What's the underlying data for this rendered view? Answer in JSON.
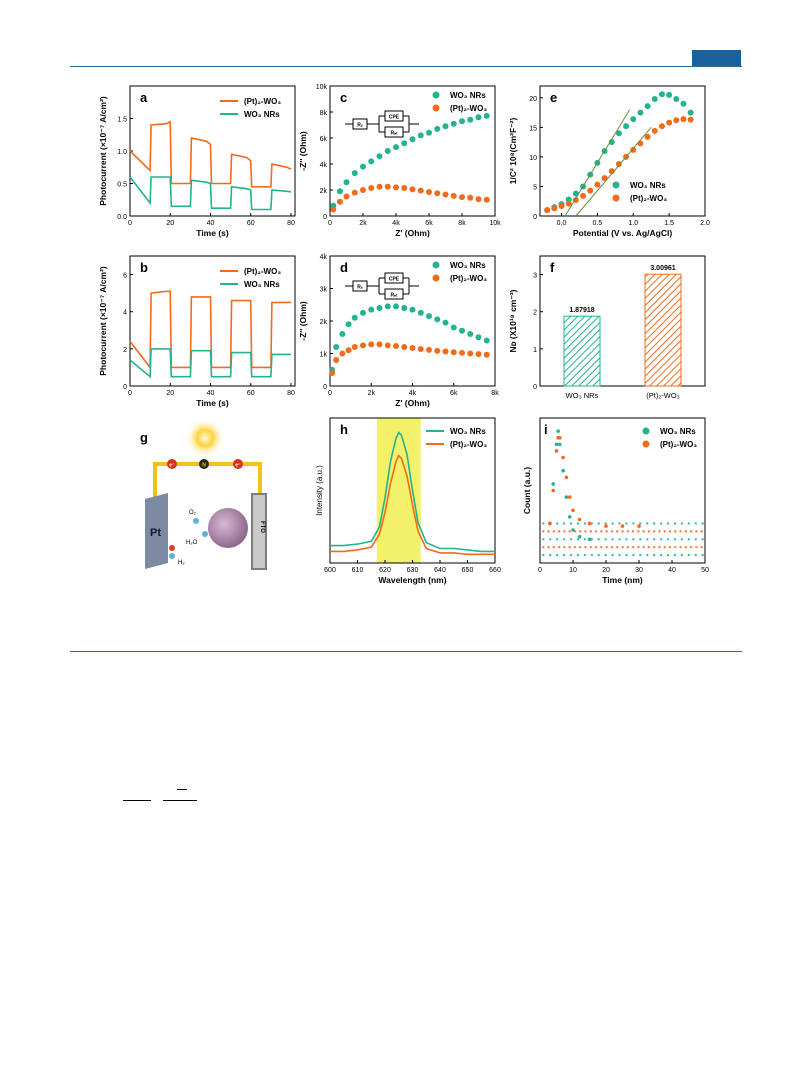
{
  "panels": {
    "a": {
      "letter": "a",
      "ylabel": "Photocurrent (×10⁻⁷ A/cm²)",
      "xlabel": "Time (s)",
      "xticks": [
        "0",
        "20",
        "40",
        "60",
        "80"
      ],
      "yticks": [
        "0.0",
        "0.5",
        "1.0",
        "1.5"
      ],
      "legend": [
        "(Pt)₂-WO₃",
        "WO₃ NRs"
      ]
    },
    "b": {
      "letter": "b",
      "ylabel": "Photocurrent (×10⁻⁷ A/cm²)",
      "xlabel": "Time (s)",
      "xticks": [
        "0",
        "20",
        "40",
        "60",
        "80"
      ],
      "yticks": [
        "0",
        "2",
        "4",
        "6"
      ],
      "legend": [
        "(Pt)₂-WO₃",
        "WO₃ NRs"
      ]
    },
    "c": {
      "letter": "c",
      "ylabel": "-Z'' (Ohm)",
      "xlabel": "Z' (Ohm)",
      "xticks": [
        "0",
        "2k",
        "4k",
        "6k",
        "8k",
        "10k"
      ],
      "yticks": [
        "0",
        "2k",
        "4k",
        "6k",
        "8k",
        "10k"
      ],
      "legend": [
        "WO₃ NRs",
        "(Pt)₂-WO₃"
      ],
      "circuit": [
        "Rₛ",
        "CPE",
        "Rₕₜ"
      ]
    },
    "d": {
      "letter": "d",
      "ylabel": "-Z'' (Ohm)",
      "xlabel": "Z' (Ohm)",
      "xticks": [
        "0",
        "2k",
        "4k",
        "6k",
        "8k"
      ],
      "yticks": [
        "0",
        "1k",
        "2k",
        "3k",
        "4k"
      ],
      "legend": [
        "WO₃ NRs",
        "(Pt)₂-WO₃"
      ],
      "circuit": [
        "Rₛ",
        "CPE",
        "Rₕₜ"
      ]
    },
    "e": {
      "letter": "e",
      "ylabel": "1/C² 10⁸(Cm²F⁻²)",
      "xlabel": "Potential (V vs. Ag/AgCl)",
      "xticks": [
        "0.0",
        "0.5",
        "1.0",
        "1.5",
        "2.0"
      ],
      "yticks": [
        "0",
        "5",
        "10",
        "15",
        "20"
      ],
      "legend": [
        "WO₃ NRs",
        "(Pt)₂-WO₃"
      ]
    },
    "f": {
      "letter": "f",
      "ylabel": "Nᴅ (X10¹⁸ cm⁻³)",
      "xticks": [
        "WO₃ NRs",
        "(Pt)₂-WO₃"
      ],
      "yticks": [
        "0",
        "1",
        "2",
        "3"
      ],
      "labels": [
        "1.87918",
        "3.00961"
      ]
    },
    "g": {
      "letter": "g",
      "pt": "Pt",
      "fto": "FTO",
      "o2": "O₂",
      "h2o": "H₂O",
      "h2": "H₂",
      "electron": "e⁻",
      "n": "N"
    },
    "h": {
      "letter": "h",
      "ylabel": "Intensity (a.u.)",
      "xlabel": "Wavelength (nm)",
      "xticks": [
        "600",
        "610",
        "620",
        "630",
        "640",
        "650",
        "660"
      ],
      "legend": [
        "WO₃ NRs",
        "(Pt)₂-WO₃"
      ]
    },
    "i": {
      "letter": "i",
      "ylabel": "Count (a.u.)",
      "xlabel": "Time (nm)",
      "xticks": [
        "0",
        "10",
        "20",
        "30",
        "40",
        "50"
      ],
      "legend": [
        "WO₃ NRs",
        "(Pt)₂-WO₃"
      ]
    }
  },
  "colors": {
    "orange": "#f26b1d",
    "green": "#23b391",
    "highlight": "#f3f06a",
    "rule": "#2b6e93"
  },
  "chart_data": [
    {
      "type": "line",
      "panel": "a",
      "x": [
        0,
        10,
        10.5,
        18,
        20,
        20.5,
        30,
        30.5,
        38,
        40,
        40.5,
        50,
        50.5,
        58,
        60,
        60.5,
        70,
        70.5,
        78,
        80
      ],
      "series": [
        {
          "name": "(Pt)₂-WO₃",
          "values": [
            1.0,
            0.7,
            1.4,
            1.42,
            1.45,
            0.5,
            0.5,
            1.2,
            1.15,
            1.1,
            0.5,
            0.5,
            0.95,
            0.9,
            0.85,
            0.45,
            0.45,
            0.8,
            0.75,
            0.72
          ]
        },
        {
          "name": "WO₃ NRs",
          "values": [
            0.6,
            0.2,
            0.6,
            0.6,
            0.6,
            0.15,
            0.15,
            0.55,
            0.52,
            0.5,
            0.12,
            0.12,
            0.45,
            0.42,
            0.4,
            0.1,
            0.1,
            0.4,
            0.38,
            0.37
          ]
        }
      ],
      "xlim": [
        0,
        82
      ],
      "ylim": [
        0,
        2.0
      ]
    },
    {
      "type": "line",
      "panel": "b",
      "x": [
        0,
        10,
        10.5,
        18,
        20,
        20.5,
        30,
        30.5,
        38,
        40,
        40.5,
        50,
        50.5,
        58,
        60,
        60.5,
        70,
        70.5,
        78,
        80
      ],
      "series": [
        {
          "name": "(Pt)₂-WO₃",
          "values": [
            2.4,
            1.0,
            5.0,
            5.1,
            5.1,
            1.0,
            1.0,
            4.8,
            4.8,
            4.8,
            1.0,
            1.0,
            4.6,
            4.6,
            4.6,
            1.0,
            1.0,
            4.5,
            4.5,
            4.5
          ]
        },
        {
          "name": "WO₃ NRs",
          "values": [
            1.4,
            0.5,
            2.0,
            2.0,
            2.0,
            0.5,
            0.5,
            1.9,
            1.9,
            1.9,
            0.5,
            0.5,
            1.8,
            1.8,
            1.8,
            0.5,
            0.5,
            1.7,
            1.7,
            1.7
          ]
        }
      ],
      "xlim": [
        0,
        82
      ],
      "ylim": [
        0,
        7
      ]
    },
    {
      "type": "scatter",
      "panel": "c",
      "series": [
        {
          "name": "WO₃ NRs",
          "x": [
            200,
            600,
            1000,
            1500,
            2000,
            2500,
            3000,
            3500,
            4000,
            4500,
            5000,
            5500,
            6000,
            6500,
            7000,
            7500,
            8000,
            8500,
            9000,
            9500
          ],
          "values": [
            800,
            1900,
            2600,
            3300,
            3800,
            4200,
            4600,
            5000,
            5300,
            5600,
            5900,
            6200,
            6400,
            6700,
            6900,
            7100,
            7300,
            7400,
            7600,
            7700
          ]
        },
        {
          "name": "(Pt)₂-WO₃",
          "x": [
            200,
            600,
            1000,
            1500,
            2000,
            2500,
            3000,
            3500,
            4000,
            4500,
            5000,
            5500,
            6000,
            6500,
            7000,
            7500,
            8000,
            8500,
            9000,
            9500
          ],
          "values": [
            500,
            1100,
            1500,
            1800,
            2000,
            2150,
            2250,
            2250,
            2200,
            2150,
            2050,
            1950,
            1850,
            1750,
            1650,
            1550,
            1450,
            1400,
            1300,
            1250
          ]
        }
      ],
      "xlim": [
        0,
        10000
      ],
      "ylim": [
        0,
        10000
      ]
    },
    {
      "type": "scatter",
      "panel": "d",
      "series": [
        {
          "name": "WO₃ NRs",
          "x": [
            100,
            300,
            600,
            900,
            1200,
            1600,
            2000,
            2400,
            2800,
            3200,
            3600,
            4000,
            4400,
            4800,
            5200,
            5600,
            6000,
            6400,
            6800,
            7200,
            7600
          ],
          "values": [
            500,
            1200,
            1600,
            1900,
            2100,
            2250,
            2350,
            2400,
            2450,
            2450,
            2400,
            2350,
            2250,
            2150,
            2050,
            1950,
            1800,
            1700,
            1600,
            1500,
            1400
          ]
        },
        {
          "name": "(Pt)₂-WO₃",
          "x": [
            100,
            300,
            600,
            900,
            1200,
            1600,
            2000,
            2400,
            2800,
            3200,
            3600,
            4000,
            4400,
            4800,
            5200,
            5600,
            6000,
            6400,
            6800,
            7200,
            7600
          ],
          "values": [
            400,
            800,
            1000,
            1100,
            1200,
            1250,
            1280,
            1280,
            1250,
            1230,
            1200,
            1170,
            1140,
            1110,
            1080,
            1060,
            1040,
            1020,
            1000,
            980,
            960
          ]
        }
      ],
      "xlim": [
        0,
        8000
      ],
      "ylim": [
        0,
        4000
      ]
    },
    {
      "type": "scatter",
      "panel": "e",
      "series": [
        {
          "name": "WO₃ NRs",
          "x": [
            -0.2,
            -0.1,
            0.0,
            0.1,
            0.2,
            0.3,
            0.4,
            0.5,
            0.6,
            0.7,
            0.8,
            0.9,
            1.0,
            1.1,
            1.2,
            1.3,
            1.4,
            1.5,
            1.6,
            1.7,
            1.8
          ],
          "values": [
            1.0,
            1.5,
            2.0,
            2.8,
            3.8,
            5.0,
            7.0,
            9.0,
            11.0,
            12.5,
            14.0,
            15.2,
            16.4,
            17.5,
            18.6,
            19.8,
            20.6,
            20.5,
            19.8,
            19.0,
            17.5
          ]
        },
        {
          "name": "(Pt)₂-WO₃",
          "x": [
            -0.2,
            -0.1,
            0.0,
            0.1,
            0.2,
            0.3,
            0.4,
            0.5,
            0.6,
            0.7,
            0.8,
            0.9,
            1.0,
            1.1,
            1.2,
            1.3,
            1.4,
            1.5,
            1.6,
            1.7,
            1.8
          ],
          "values": [
            1.0,
            1.3,
            1.7,
            2.1,
            2.7,
            3.4,
            4.3,
            5.3,
            6.4,
            7.6,
            8.8,
            10.0,
            11.2,
            12.3,
            13.4,
            14.4,
            15.2,
            15.8,
            16.2,
            16.4,
            16.3
          ]
        }
      ],
      "xlim": [
        -0.3,
        2.0
      ],
      "ylim": [
        0,
        22
      ]
    },
    {
      "type": "bar",
      "panel": "f",
      "categories": [
        "WO₃ NRs",
        "(Pt)₂-WO₃"
      ],
      "values": [
        1.87918,
        3.00961
      ],
      "ylim": [
        0,
        3.5
      ]
    },
    {
      "type": "line",
      "panel": "h",
      "x": [
        600,
        605,
        610,
        615,
        618,
        620,
        622,
        624,
        625,
        626,
        628,
        630,
        632,
        635,
        640,
        645,
        650,
        655,
        660
      ],
      "series": [
        {
          "name": "WO₃ NRs",
          "values": [
            0.12,
            0.12,
            0.13,
            0.15,
            0.25,
            0.45,
            0.7,
            0.86,
            0.9,
            0.88,
            0.75,
            0.5,
            0.28,
            0.14,
            0.1,
            0.1,
            0.09,
            0.08,
            0.08
          ]
        },
        {
          "name": "(Pt)₂-WO₃",
          "values": [
            0.08,
            0.08,
            0.09,
            0.11,
            0.2,
            0.35,
            0.55,
            0.7,
            0.74,
            0.72,
            0.6,
            0.4,
            0.22,
            0.1,
            0.07,
            0.07,
            0.06,
            0.06,
            0.06
          ]
        }
      ],
      "xlim": [
        600,
        660
      ],
      "ylim": [
        0,
        1
      ]
    },
    {
      "type": "scatter",
      "panel": "i",
      "series": [
        {
          "name": "WO₃ NRs",
          "x": [
            3,
            4,
            5,
            5.5,
            6,
            7,
            8,
            9,
            10,
            12,
            15
          ],
          "values": [
            0.3,
            0.6,
            0.9,
            1.0,
            0.9,
            0.7,
            0.5,
            0.35,
            0.25,
            0.2,
            0.18
          ]
        },
        {
          "name": "(Pt)₂-WO₃",
          "x": [
            3,
            4,
            5,
            5.5,
            6,
            7,
            8,
            9,
            10,
            12,
            15,
            20,
            25,
            30
          ],
          "values": [
            0.3,
            0.55,
            0.85,
            0.95,
            0.95,
            0.8,
            0.65,
            0.5,
            0.4,
            0.33,
            0.3,
            0.28,
            0.28,
            0.28
          ]
        }
      ],
      "xlim": [
        0,
        50
      ],
      "ylim": [
        0,
        1.1
      ]
    }
  ]
}
